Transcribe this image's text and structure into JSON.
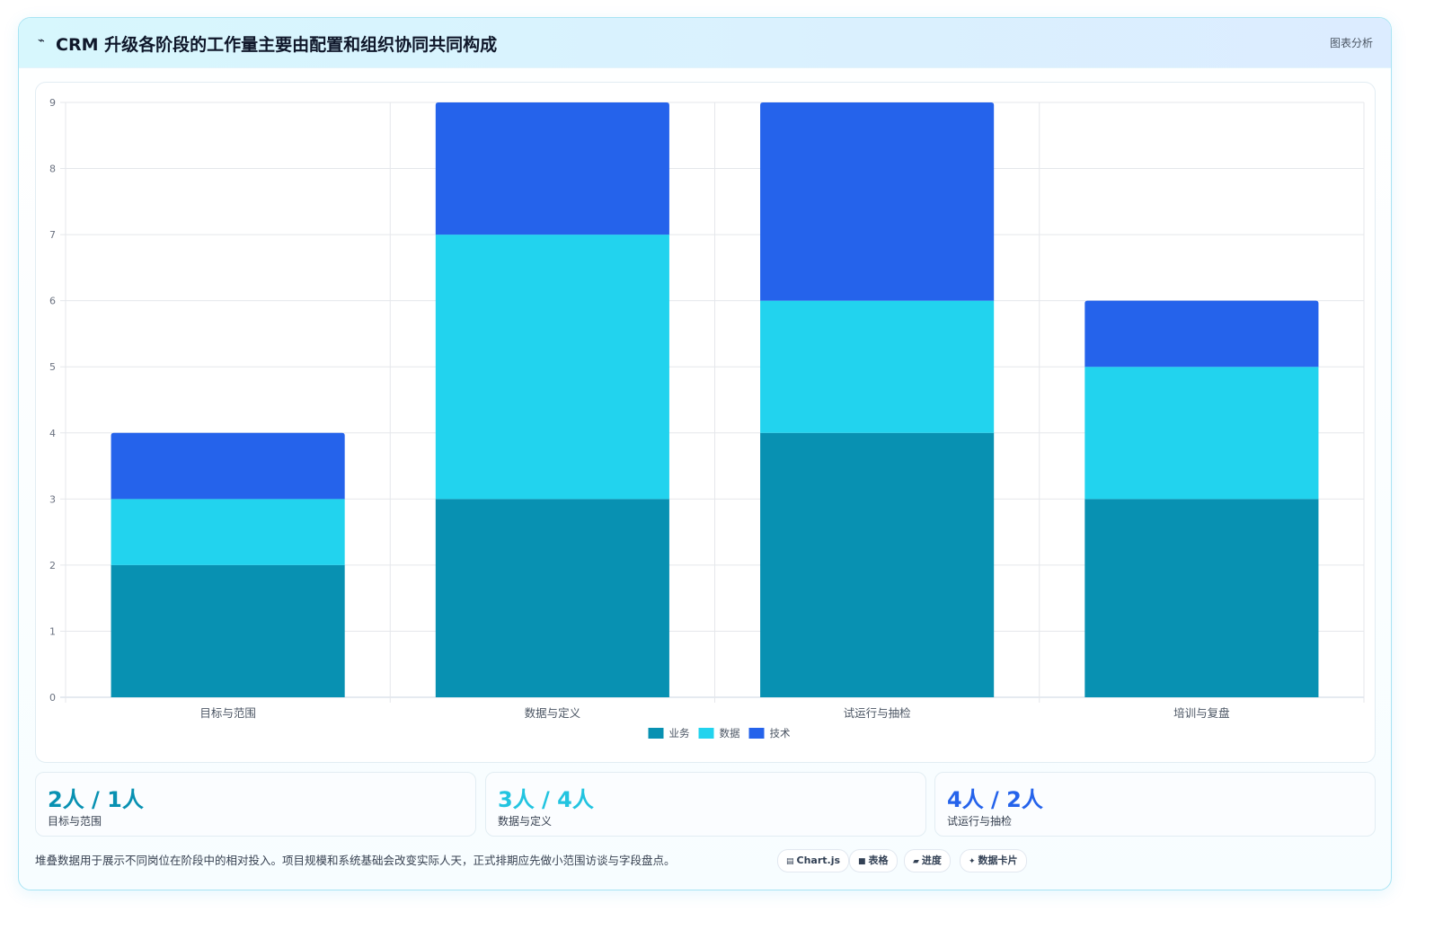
{
  "header": {
    "icon": "trend-icon",
    "title": "CRM 升级各阶段的工作量主要由配置和组织协同共同构成",
    "tag": "图表分析"
  },
  "chart_data": {
    "type": "bar",
    "stacked": true,
    "categories": [
      "目标与范围",
      "数据与定义",
      "试运行与抽检",
      "培训与复盘"
    ],
    "series": [
      {
        "name": "业务",
        "values": [
          2,
          3,
          4,
          3
        ],
        "color": "#0891b2"
      },
      {
        "name": "数据",
        "values": [
          1,
          4,
          2,
          2
        ],
        "color": "#22d3ee"
      },
      {
        "name": "技术",
        "values": [
          1,
          2,
          3,
          1
        ],
        "color": "#2563eb"
      }
    ],
    "ylim": [
      0,
      9
    ],
    "yticks": [
      0,
      1,
      2,
      3,
      4,
      5,
      6,
      7,
      8,
      9
    ],
    "grid": true,
    "legend": "bottom-center"
  },
  "stats": [
    {
      "value": "2人 / 1人",
      "label": "目标与范围",
      "color": "#0891b2"
    },
    {
      "value": "3人 / 4人",
      "label": "数据与定义",
      "color": "#22c4e0"
    },
    {
      "value": "4人 / 2人",
      "label": "试运行与抽检",
      "color": "#2563eb"
    }
  ],
  "footnote": "堆叠数据用于展示不同岗位在阶段中的相对投入。项目规模和系统基础会改变实际人天，正式排期应先做小范围访谈与字段盘点。",
  "chips": [
    {
      "icon": "chart-icon",
      "glyph": "▤",
      "label": "Chart.js"
    },
    {
      "icon": "table-icon",
      "glyph": "■",
      "label": "表格"
    },
    {
      "icon": "progress-icon",
      "glyph": "▰",
      "label": "进度"
    },
    {
      "icon": "sparkle-icon",
      "glyph": "✦",
      "label": "数据卡片"
    }
  ]
}
